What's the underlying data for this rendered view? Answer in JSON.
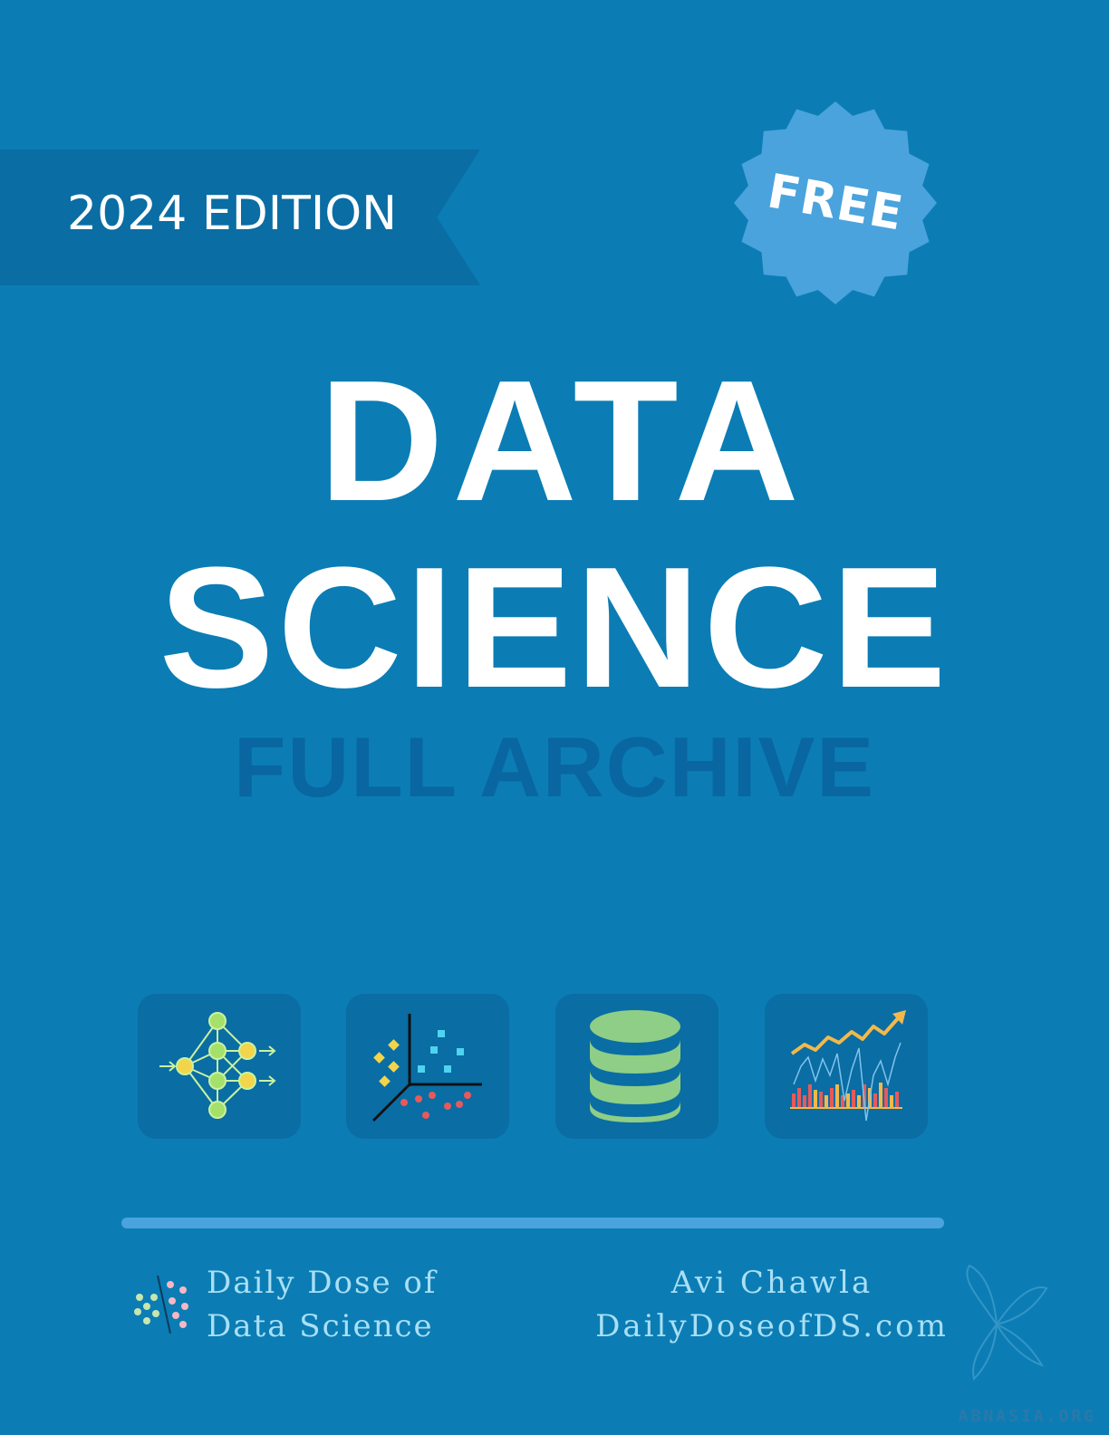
{
  "edition": "2024 EDITION",
  "badge": "FREE",
  "title": {
    "line1": "DATA",
    "line2": "SCIENCE"
  },
  "subtitle": "FULL ARCHIVE",
  "icons": [
    "neural-network-icon",
    "scatter-plot-icon",
    "database-icon",
    "trend-chart-icon"
  ],
  "brand": {
    "line1": "Daily Dose of",
    "line2": "Data Science",
    "logo": "dots-logo-icon"
  },
  "author": {
    "name": "Avi Chawla",
    "website": "DailyDoseofDS.com"
  },
  "watermark": "ABNASIA.ORG",
  "colors": {
    "background": "#0b7db4",
    "ribbon": "#0a6da4",
    "badge": "#4aa3dc",
    "subtitle": "#0966a0",
    "footer_text": "#a9dff5"
  }
}
